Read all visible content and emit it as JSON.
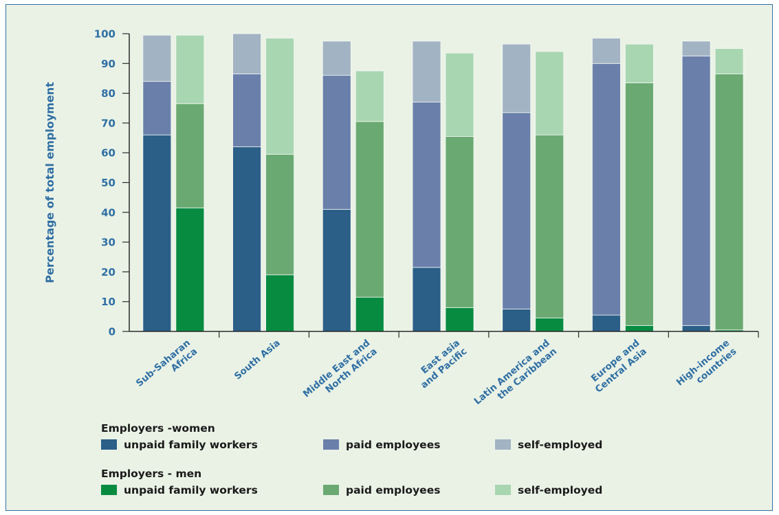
{
  "chart_data": {
    "type": "bar",
    "stacked": true,
    "grouped": true,
    "ylabel": "Percentage of total employment",
    "ylim": [
      0,
      100
    ],
    "yticks": [
      0,
      10,
      20,
      30,
      40,
      50,
      60,
      70,
      80,
      90,
      100
    ],
    "grid": false,
    "categories": [
      [
        "Sub-Saharan",
        "Africa"
      ],
      [
        "South Asia"
      ],
      [
        "Middle East and",
        "North Africa"
      ],
      [
        "East asia",
        "and Pacific"
      ],
      [
        "Latin America and",
        "the Caribbean"
      ],
      [
        "Europe and",
        "Central Asia"
      ],
      [
        "High-income",
        "countries"
      ]
    ],
    "groups": [
      {
        "name": "Employers -women",
        "series": [
          {
            "name": "unpaid family workers",
            "color": "#2b5f88",
            "values": [
              66,
              62,
              41,
              21.5,
              7.5,
              5.5,
              2
            ]
          },
          {
            "name": "paid employees",
            "color": "#6a80ab",
            "values": [
              18,
              24.5,
              45,
              55.5,
              66,
              84.5,
              90.5
            ]
          },
          {
            "name": "self-employed",
            "color": "#a2b3c4",
            "values": [
              15.5,
              13.5,
              11.5,
              20.5,
              23,
              8.5,
              5
            ]
          }
        ]
      },
      {
        "name": "Employers - men",
        "series": [
          {
            "name": "unpaid family workers",
            "color": "#078b41",
            "values": [
              41.5,
              19,
              11.5,
              8,
              4.5,
              2,
              0.5
            ]
          },
          {
            "name": "paid employees",
            "color": "#6aaa72",
            "values": [
              35,
              40.5,
              59,
              57.5,
              61.5,
              81.5,
              86
            ]
          },
          {
            "name": "self-employed",
            "color": "#a8d6b1",
            "values": [
              23,
              39,
              17,
              28,
              28,
              13,
              8.5
            ]
          }
        ]
      }
    ],
    "legend_position": "bottom-left"
  }
}
